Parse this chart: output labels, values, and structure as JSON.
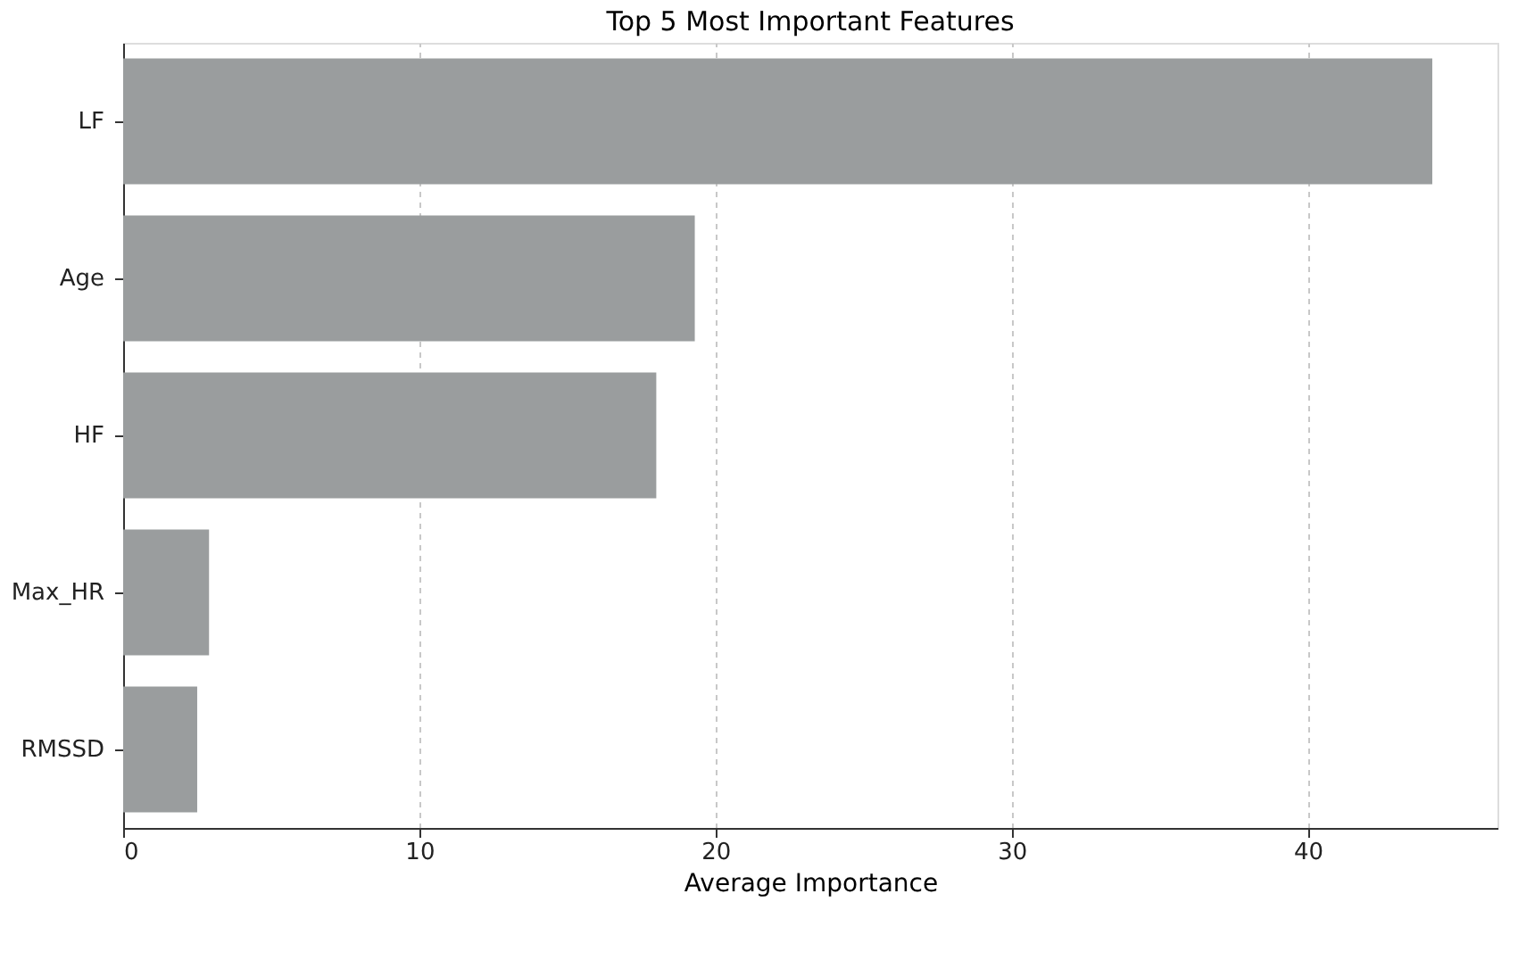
{
  "chart_data": {
    "type": "bar",
    "orientation": "horizontal",
    "title": "Top 5 Most Important Features",
    "xlabel": "Average Importance",
    "categories": [
      "LF",
      "Age",
      "HF",
      "Max_HR",
      "RMSSD"
    ],
    "values": [
      44.2,
      19.3,
      18.0,
      2.9,
      2.5
    ],
    "color": "#9a9d9e",
    "xlim": [
      0,
      46.4
    ],
    "xticks": [
      0,
      10,
      20,
      30,
      40
    ],
    "grid": "x"
  }
}
